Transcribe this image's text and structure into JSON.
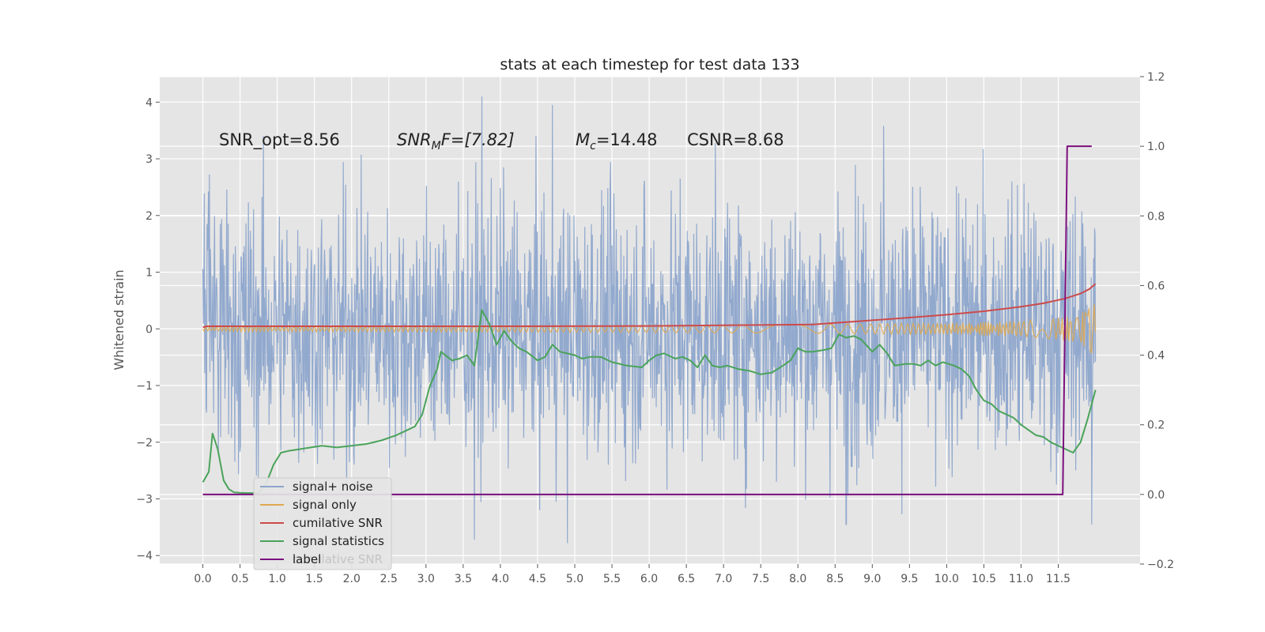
{
  "chart_data": {
    "type": "line",
    "title": "stats at each timestep for test data 133",
    "ylabel": "Whitened strain",
    "xlim": [
      -0.58,
      12.6
    ],
    "ylim": [
      -4.15,
      4.45
    ],
    "ylim_right": [
      -0.2,
      1.2
    ],
    "grid": true,
    "x_ticks": [
      "0.0",
      "0.5",
      "1.0",
      "1.5",
      "2.0",
      "2.5",
      "3.0",
      "3.5",
      "4.0",
      "4.5",
      "5.0",
      "5.5",
      "6.0",
      "6.5",
      "7.0",
      "7.5",
      "8.0",
      "8.5",
      "9.0",
      "9.5",
      "10.0",
      "10.5",
      "11.0",
      "11.5"
    ],
    "y_ticks": [
      "−4",
      "−3",
      "−2",
      "−1",
      "0",
      "1",
      "2",
      "3",
      "4"
    ],
    "y_ticks_right": [
      "−0.2",
      "0.0",
      "0.2",
      "0.4",
      "0.6",
      "0.8",
      "1.0",
      "1.2"
    ],
    "legend_placement": "lower-left",
    "annotations": [
      {
        "id": "snr_opt",
        "text": "SNR_opt=8.56"
      },
      {
        "id": "snr_mf_base",
        "text": "SNR",
        "sub": "M",
        "rest": "F=[7.82]"
      },
      {
        "id": "mc_base",
        "text": "M",
        "sub": "c",
        "rest": "=14.48"
      },
      {
        "id": "csnr",
        "text": "CSNR=8.68"
      }
    ],
    "hidden_legend_text": "cumilative SNR",
    "series": [
      {
        "name": "signal+ noise",
        "color": "#8da5cc",
        "axis": "left",
        "kind": "noise",
        "x_range": [
          0,
          12.0
        ],
        "typical_amplitude": 1.6,
        "peaks": [
          [
            3.75,
            4.1
          ],
          [
            4.7,
            3.95
          ],
          [
            9.15,
            3.58
          ],
          [
            3.65,
            -3.72
          ],
          [
            4.9,
            -3.78
          ],
          [
            11.95,
            -3.45
          ],
          [
            8.65,
            -3.45
          ]
        ]
      },
      {
        "name": "signal only",
        "color": "#e0a84e",
        "axis": "left",
        "kind": "chirp",
        "x_range": [
          0,
          12.0
        ],
        "amplitude_end": 0.85
      },
      {
        "name": "cumilative SNR",
        "color": "#cc4b4b",
        "axis": "right",
        "x": [
          0.0,
          0.05,
          2.0,
          4.0,
          6.0,
          7.0,
          8.2,
          8.8,
          9.5,
          10.0,
          10.5,
          11.0,
          11.3,
          11.6,
          11.8,
          11.92,
          12.0
        ],
        "values": [
          0.48,
          0.483,
          0.483,
          0.483,
          0.484,
          0.486,
          0.488,
          0.497,
          0.508,
          0.516,
          0.526,
          0.539,
          0.549,
          0.563,
          0.577,
          0.59,
          0.605
        ]
      },
      {
        "name": "signal statistics",
        "color": "#4aa35a",
        "axis": "right",
        "x": [
          0.0,
          0.08,
          0.13,
          0.2,
          0.28,
          0.35,
          0.42,
          0.5,
          0.6,
          0.75,
          0.85,
          0.95,
          1.05,
          1.15,
          1.3,
          1.45,
          1.6,
          1.8,
          2.0,
          2.2,
          2.4,
          2.6,
          2.75,
          2.85,
          2.95,
          3.05,
          3.15,
          3.2,
          3.35,
          3.45,
          3.55,
          3.65,
          3.75,
          3.85,
          3.95,
          4.05,
          4.15,
          4.25,
          4.35,
          4.5,
          4.6,
          4.7,
          4.8,
          4.9,
          5.0,
          5.1,
          5.2,
          5.35,
          5.5,
          5.7,
          5.9,
          6.0,
          6.1,
          6.2,
          6.35,
          6.45,
          6.55,
          6.65,
          6.75,
          6.85,
          6.95,
          7.05,
          7.2,
          7.35,
          7.5,
          7.65,
          7.8,
          7.9,
          8.0,
          8.1,
          8.2,
          8.35,
          8.45,
          8.55,
          8.65,
          8.75,
          8.85,
          9.0,
          9.1,
          9.2,
          9.3,
          9.45,
          9.55,
          9.65,
          9.75,
          9.85,
          9.95,
          10.1,
          10.2,
          10.3,
          10.4,
          10.5,
          10.6,
          10.7,
          10.8,
          10.9,
          11.0,
          11.1,
          11.2,
          11.3,
          11.4,
          11.5,
          11.6,
          11.7,
          11.8,
          11.9,
          12.0
        ],
        "values": [
          0.035,
          0.065,
          0.175,
          0.13,
          0.04,
          0.015,
          0.006,
          0.005,
          0.004,
          0.004,
          0.03,
          0.085,
          0.12,
          0.125,
          0.13,
          0.135,
          0.14,
          0.135,
          0.14,
          0.145,
          0.155,
          0.17,
          0.185,
          0.195,
          0.23,
          0.31,
          0.36,
          0.41,
          0.385,
          0.39,
          0.4,
          0.37,
          0.53,
          0.49,
          0.43,
          0.47,
          0.44,
          0.42,
          0.41,
          0.385,
          0.395,
          0.43,
          0.41,
          0.405,
          0.4,
          0.39,
          0.395,
          0.395,
          0.38,
          0.37,
          0.365,
          0.385,
          0.4,
          0.405,
          0.39,
          0.395,
          0.385,
          0.365,
          0.4,
          0.37,
          0.365,
          0.37,
          0.36,
          0.355,
          0.345,
          0.35,
          0.37,
          0.385,
          0.42,
          0.41,
          0.41,
          0.415,
          0.42,
          0.46,
          0.45,
          0.455,
          0.445,
          0.41,
          0.43,
          0.405,
          0.37,
          0.375,
          0.375,
          0.37,
          0.385,
          0.37,
          0.38,
          0.37,
          0.36,
          0.34,
          0.3,
          0.27,
          0.26,
          0.24,
          0.23,
          0.22,
          0.2,
          0.185,
          0.17,
          0.165,
          0.15,
          0.14,
          0.13,
          0.12,
          0.15,
          0.22,
          0.3
        ]
      },
      {
        "name": "label",
        "color": "#7b0f7e",
        "axis": "right",
        "x": [
          0.0,
          11.56,
          11.62,
          11.95
        ],
        "values": [
          0.0,
          0.0,
          1.0,
          1.0
        ]
      }
    ]
  }
}
